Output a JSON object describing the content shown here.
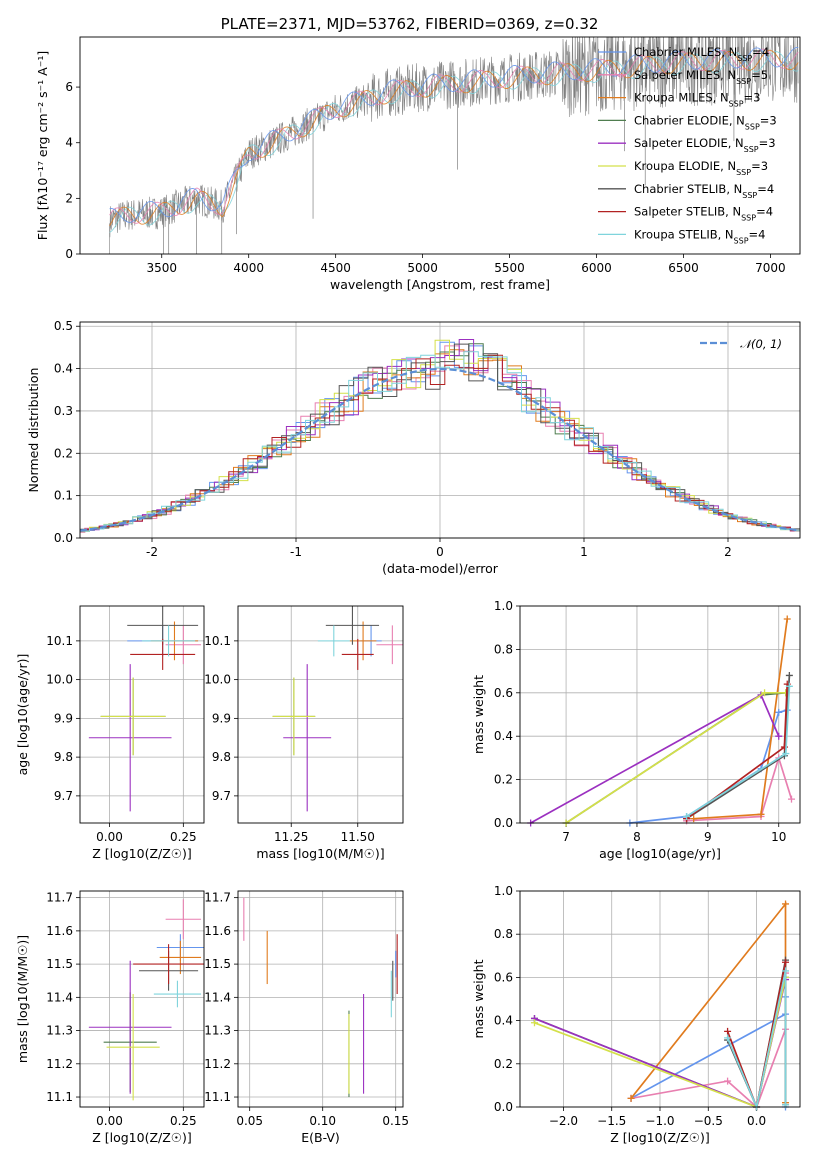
{
  "title": "PLATE=2371, MJD=53762, FIBERID=0369, z=0.32",
  "colors": {
    "chabrier_miles": "#6495ed",
    "salpeter_miles": "#e87fb0",
    "kroupa_miles": "#e07b1e",
    "chabrier_elodie": "#4f7d4f",
    "salpeter_elodie": "#9b30c0",
    "kroupa_elodie": "#d4e04a",
    "chabrier_stelib": "#555555",
    "salpeter_stelib": "#b22222",
    "kroupa_stelib": "#7fd4dc",
    "data": "#808080",
    "normal": "#5b8fd6"
  },
  "chart_data": [
    {
      "id": "spectrum",
      "type": "line",
      "xlabel": "wavelength [Angstrom, rest frame]",
      "ylabel": "Flux [fλ10⁻¹⁷ erg cm⁻² s⁻¹ A⁻¹]",
      "xlim": [
        3030,
        7170
      ],
      "ylim": [
        0,
        7.8
      ],
      "xticks": [
        3500,
        4000,
        4500,
        5000,
        5500,
        6000,
        6500,
        7000
      ],
      "yticks": [
        0,
        2,
        4,
        6
      ],
      "legend_position": "top-right",
      "series": [
        {
          "name": "Chabrier MILES, N_SSP=4"
        },
        {
          "name": "Salpeter MILES, N_SSP=5"
        },
        {
          "name": "Kroupa MILES, N_SSP=3"
        },
        {
          "name": "Chabrier ELODIE, N_SSP=3"
        },
        {
          "name": "Salpeter ELODIE, N_SSP=3"
        },
        {
          "name": "Kroupa ELODIE, N_SSP=3"
        },
        {
          "name": "Chabrier STELIB, N_SSP=4"
        },
        {
          "name": "Salpeter STELIB, N_SSP=4"
        },
        {
          "name": "Kroupa STELIB, N_SSP=4"
        }
      ],
      "continuum": {
        "x": [
          3200,
          3300,
          3500,
          3700,
          3850,
          4000,
          4200,
          4500,
          4800,
          5000,
          5300,
          5600,
          6000,
          6500,
          7000
        ],
        "y": [
          1.2,
          1.4,
          1.5,
          2.0,
          1.7,
          3.6,
          4.2,
          5.2,
          5.8,
          6.0,
          6.2,
          6.4,
          6.6,
          6.9,
          7.0
        ]
      }
    },
    {
      "id": "residuals",
      "type": "line",
      "xlabel": "(data-model)/error",
      "ylabel": "Normed distribution",
      "xlim": [
        -2.5,
        2.5
      ],
      "ylim": [
        0,
        0.51
      ],
      "xticks": [
        -2,
        -1,
        0,
        1,
        2
      ],
      "yticks": [
        0.0,
        0.1,
        0.2,
        0.3,
        0.4,
        0.5
      ],
      "grid": true,
      "legend_position": "top-right",
      "normal_label": "N(0,1)"
    },
    {
      "id": "z_age",
      "type": "scatter",
      "xlabel": "Z [log10(Z/Z☉)]",
      "ylabel": "age  [log10(age/yr)]",
      "xlim": [
        -0.1,
        0.32
      ],
      "ylim": [
        9.63,
        10.19
      ],
      "xticks": [
        0.0,
        0.25
      ],
      "yticks": [
        9.7,
        9.8,
        9.9,
        10.0,
        10.1
      ],
      "grid": true,
      "points": [
        {
          "x": 0.18,
          "y": 10.1,
          "xerr": 0.12,
          "yerr": 0.04,
          "c": "chabrier_miles"
        },
        {
          "x": 0.25,
          "y": 10.09,
          "xerr": 0.06,
          "yerr": 0.05,
          "c": "salpeter_miles"
        },
        {
          "x": 0.22,
          "y": 10.1,
          "xerr": 0.08,
          "yerr": 0.05,
          "c": "kroupa_miles"
        },
        {
          "x": 0.08,
          "y": 9.905,
          "xerr": 0.11,
          "yerr": 0.1,
          "c": "chabrier_elodie"
        },
        {
          "x": 0.07,
          "y": 9.85,
          "xerr": 0.14,
          "yerr": 0.19,
          "c": "salpeter_elodie"
        },
        {
          "x": 0.08,
          "y": 9.905,
          "xerr": 0.11,
          "yerr": 0.1,
          "c": "kroupa_elodie"
        },
        {
          "x": 0.18,
          "y": 10.14,
          "xerr": 0.12,
          "yerr": 0.05,
          "c": "chabrier_stelib"
        },
        {
          "x": 0.18,
          "y": 10.065,
          "xerr": 0.11,
          "yerr": 0.04,
          "c": "salpeter_stelib"
        },
        {
          "x": 0.2,
          "y": 10.1,
          "xerr": 0.09,
          "yerr": 0.04,
          "c": "kroupa_stelib"
        }
      ]
    },
    {
      "id": "mass_age",
      "type": "scatter",
      "xlabel": "mass [log10(M/M☉)]",
      "ylabel": "",
      "xlim": [
        11.05,
        11.67
      ],
      "ylim": [
        9.63,
        10.19
      ],
      "xticks": [
        11.25,
        11.5
      ],
      "yticks": [
        9.7,
        9.8,
        9.9,
        10.0,
        10.1
      ],
      "grid": true,
      "points": [
        {
          "x": 11.55,
          "y": 10.1,
          "xerr": 0.04,
          "yerr": 0.04,
          "c": "chabrier_miles"
        },
        {
          "x": 11.63,
          "y": 10.09,
          "xerr": 0.06,
          "yerr": 0.05,
          "c": "salpeter_miles"
        },
        {
          "x": 11.52,
          "y": 10.1,
          "xerr": 0.05,
          "yerr": 0.05,
          "c": "kroupa_miles"
        },
        {
          "x": 11.26,
          "y": 9.905,
          "xerr": 0.08,
          "yerr": 0.1,
          "c": "chabrier_elodie"
        },
        {
          "x": 11.31,
          "y": 9.85,
          "xerr": 0.09,
          "yerr": 0.19,
          "c": "salpeter_elodie"
        },
        {
          "x": 11.26,
          "y": 9.905,
          "xerr": 0.08,
          "yerr": 0.1,
          "c": "kroupa_elodie"
        },
        {
          "x": 11.48,
          "y": 10.14,
          "xerr": 0.1,
          "yerr": 0.05,
          "c": "chabrier_stelib"
        },
        {
          "x": 11.5,
          "y": 10.065,
          "xerr": 0.06,
          "yerr": 0.04,
          "c": "salpeter_stelib"
        },
        {
          "x": 11.41,
          "y": 10.1,
          "xerr": 0.06,
          "yerr": 0.04,
          "c": "kroupa_stelib"
        }
      ]
    },
    {
      "id": "age_weight",
      "type": "line",
      "xlabel": "age  [log10(age/yr)]",
      "ylabel": "mass weight",
      "xlim": [
        6.35,
        10.3
      ],
      "ylim": [
        0,
        1.0
      ],
      "xticks": [
        7,
        8,
        9,
        10
      ],
      "yticks": [
        0.0,
        0.2,
        0.4,
        0.6,
        0.8,
        1.0
      ],
      "grid": true,
      "series": [
        {
          "c": "chabrier_miles",
          "x": [
            7.9,
            8.7,
            9.75,
            10.0,
            10.12
          ],
          "y": [
            0.0,
            0.03,
            0.25,
            0.51,
            0.52
          ]
        },
        {
          "c": "salpeter_miles",
          "x": [
            8.7,
            9.75,
            10.0,
            10.18
          ],
          "y": [
            0.01,
            0.03,
            0.3,
            0.11
          ]
        },
        {
          "c": "kroupa_miles",
          "x": [
            8.8,
            9.75,
            10.12
          ],
          "y": [
            0.02,
            0.04,
            0.94
          ]
        },
        {
          "c": "chabrier_elodie",
          "x": [
            7.0,
            9.75,
            10.1
          ],
          "y": [
            0.0,
            0.59,
            0.6
          ]
        },
        {
          "c": "salpeter_elodie",
          "x": [
            6.5,
            9.75,
            10.0
          ],
          "y": [
            0.0,
            0.59,
            0.4
          ]
        },
        {
          "c": "kroupa_elodie",
          "x": [
            7.0,
            9.8,
            10.1
          ],
          "y": [
            0.0,
            0.6,
            0.6
          ]
        },
        {
          "c": "chabrier_stelib",
          "x": [
            8.7,
            10.08,
            10.15
          ],
          "y": [
            0.02,
            0.31,
            0.68
          ]
        },
        {
          "c": "salpeter_stelib",
          "x": [
            8.7,
            10.08,
            10.12
          ],
          "y": [
            0.02,
            0.35,
            0.64
          ]
        },
        {
          "c": "kroupa_stelib",
          "x": [
            8.7,
            10.1,
            10.15
          ],
          "y": [
            0.03,
            0.32,
            0.63
          ]
        }
      ]
    },
    {
      "id": "z_mass",
      "type": "scatter",
      "xlabel": "Z [log10(Z/Z☉)]",
      "ylabel": "mass [log10(M/M☉)]",
      "xlim": [
        -0.1,
        0.32
      ],
      "ylim": [
        11.07,
        11.72
      ],
      "xticks": [
        0.0,
        0.25
      ],
      "yticks": [
        11.1,
        11.2,
        11.3,
        11.4,
        11.5,
        11.6,
        11.7
      ],
      "grid": true,
      "points": [
        {
          "x": 0.24,
          "y": 11.55,
          "xerr": 0.08,
          "yerr": 0.04,
          "c": "chabrier_miles"
        },
        {
          "x": 0.25,
          "y": 11.635,
          "xerr": 0.06,
          "yerr": 0.06,
          "c": "salpeter_miles"
        },
        {
          "x": 0.24,
          "y": 11.52,
          "xerr": 0.07,
          "yerr": 0.05,
          "c": "kroupa_miles"
        },
        {
          "x": 0.07,
          "y": 11.265,
          "xerr": 0.09,
          "yerr": 0.15,
          "c": "chabrier_elodie"
        },
        {
          "x": 0.07,
          "y": 11.31,
          "xerr": 0.14,
          "yerr": 0.2,
          "c": "salpeter_elodie"
        },
        {
          "x": 0.08,
          "y": 11.25,
          "xerr": 0.09,
          "yerr": 0.16,
          "c": "kroupa_elodie"
        },
        {
          "x": 0.2,
          "y": 11.48,
          "xerr": 0.1,
          "yerr": 0.06,
          "c": "chabrier_stelib"
        },
        {
          "x": 0.2,
          "y": 11.5,
          "xerr": 0.12,
          "yerr": 0.06,
          "c": "salpeter_stelib"
        },
        {
          "x": 0.23,
          "y": 11.41,
          "xerr": 0.08,
          "yerr": 0.04,
          "c": "kroupa_stelib"
        }
      ]
    },
    {
      "id": "ebv_mass",
      "type": "scatter",
      "xlabel": "E(B-V)",
      "ylabel": "",
      "xlim": [
        0.042,
        0.155
      ],
      "ylim": [
        11.07,
        11.72
      ],
      "xticks": [
        0.05,
        0.1,
        0.15
      ],
      "yticks": [
        11.1,
        11.2,
        11.3,
        11.4,
        11.5,
        11.6,
        11.7
      ],
      "grid": true,
      "points": [
        {
          "x": 0.15,
          "y": 11.5,
          "xerr": 0,
          "yerr": 0.04,
          "c": "chabrier_miles"
        },
        {
          "x": 0.046,
          "y": 11.635,
          "xerr": 0,
          "yerr": 0.065,
          "c": "salpeter_miles"
        },
        {
          "x": 0.062,
          "y": 11.52,
          "xerr": 0,
          "yerr": 0.08,
          "c": "kroupa_miles"
        },
        {
          "x": 0.118,
          "y": 11.23,
          "xerr": 0,
          "yerr": 0.13,
          "c": "chabrier_elodie"
        },
        {
          "x": 0.128,
          "y": 11.26,
          "xerr": 0,
          "yerr": 0.15,
          "c": "salpeter_elodie"
        },
        {
          "x": 0.118,
          "y": 11.23,
          "xerr": 0,
          "yerr": 0.12,
          "c": "kroupa_elodie"
        },
        {
          "x": 0.148,
          "y": 11.45,
          "xerr": 0,
          "yerr": 0.06,
          "c": "chabrier_stelib"
        },
        {
          "x": 0.151,
          "y": 11.5,
          "xerr": 0,
          "yerr": 0.09,
          "c": "salpeter_stelib"
        },
        {
          "x": 0.147,
          "y": 11.41,
          "xerr": 0,
          "yerr": 0.07,
          "c": "kroupa_stelib"
        }
      ]
    },
    {
      "id": "z_weight",
      "type": "line",
      "xlabel": "Z [log10(Z/Z☉)]",
      "ylabel": "mass weight",
      "xlim": [
        -2.45,
        0.45
      ],
      "ylim": [
        0,
        1.0
      ],
      "xticks": [
        -2.0,
        -1.5,
        -1.0,
        -0.5,
        0.0
      ],
      "yticks": [
        0.0,
        0.2,
        0.4,
        0.6,
        0.8,
        1.0
      ],
      "grid": true,
      "series": [
        {
          "c": "chabrier_miles",
          "x": [
            -1.3,
            0.3,
            0.3,
            0.3
          ],
          "y": [
            0.04,
            0.43,
            0.51,
            0.0
          ]
        },
        {
          "c": "salpeter_miles",
          "x": [
            -1.3,
            -0.3,
            0.0,
            0.3,
            0.3
          ],
          "y": [
            0.04,
            0.12,
            0.0,
            0.36,
            0.62
          ]
        },
        {
          "c": "kroupa_miles",
          "x": [
            -1.3,
            0.3,
            0.3
          ],
          "y": [
            0.04,
            0.94,
            0.02
          ]
        },
        {
          "c": "chabrier_elodie",
          "x": [
            -2.3,
            0.0,
            0.3
          ],
          "y": [
            0.41,
            0.0,
            0.6
          ]
        },
        {
          "c": "salpeter_elodie",
          "x": [
            -2.3,
            0.0,
            0.3
          ],
          "y": [
            0.41,
            0.0,
            0.59
          ]
        },
        {
          "c": "kroupa_elodie",
          "x": [
            -2.3,
            0.0,
            0.3
          ],
          "y": [
            0.39,
            0.0,
            0.6
          ]
        },
        {
          "c": "chabrier_stelib",
          "x": [
            -0.3,
            0.0,
            0.3,
            0.3
          ],
          "y": [
            0.31,
            0.0,
            0.68,
            0.01
          ]
        },
        {
          "c": "salpeter_stelib",
          "x": [
            -0.3,
            0.0,
            0.3
          ],
          "y": [
            0.35,
            0.0,
            0.67
          ]
        },
        {
          "c": "kroupa_stelib",
          "x": [
            -0.3,
            0.0,
            0.3,
            0.3
          ],
          "y": [
            0.32,
            0.0,
            0.63,
            0.01
          ]
        }
      ]
    }
  ]
}
